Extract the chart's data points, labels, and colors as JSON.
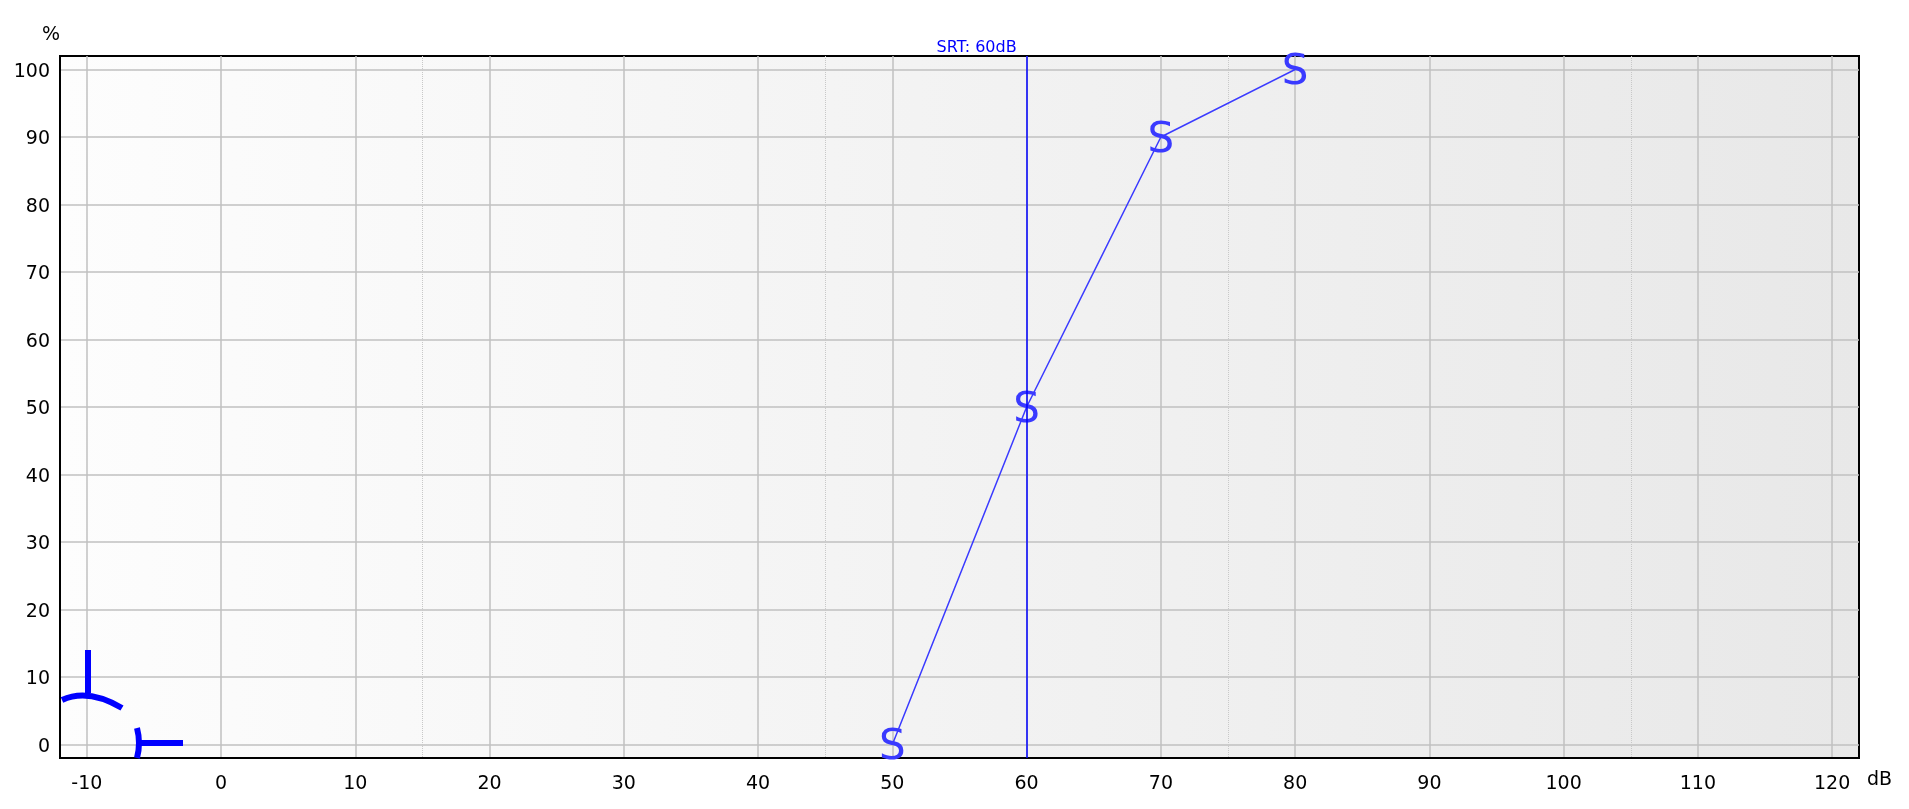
{
  "chart_data": {
    "type": "line",
    "xlabel": "dB",
    "ylabel": "%",
    "x": [
      50,
      60,
      70,
      80
    ],
    "series": [
      {
        "name": "S",
        "color": "#3a3aff",
        "values": [
          0,
          50,
          90,
          100
        ]
      }
    ],
    "marker": "none",
    "xlim": [
      -12,
      122
    ],
    "xticks": [
      -10,
      0,
      10,
      20,
      30,
      40,
      50,
      60,
      70,
      80,
      90,
      100,
      110,
      120
    ],
    "ylim": [
      -2,
      102
    ],
    "yticks": [
      0,
      10,
      20,
      30,
      40,
      50,
      60,
      70,
      80,
      90,
      100
    ],
    "ref_lines": [
      {
        "axis": "x",
        "value": 60,
        "label": "SRT: 60dB",
        "color": "#0000ff"
      }
    ],
    "grid": true
  }
}
